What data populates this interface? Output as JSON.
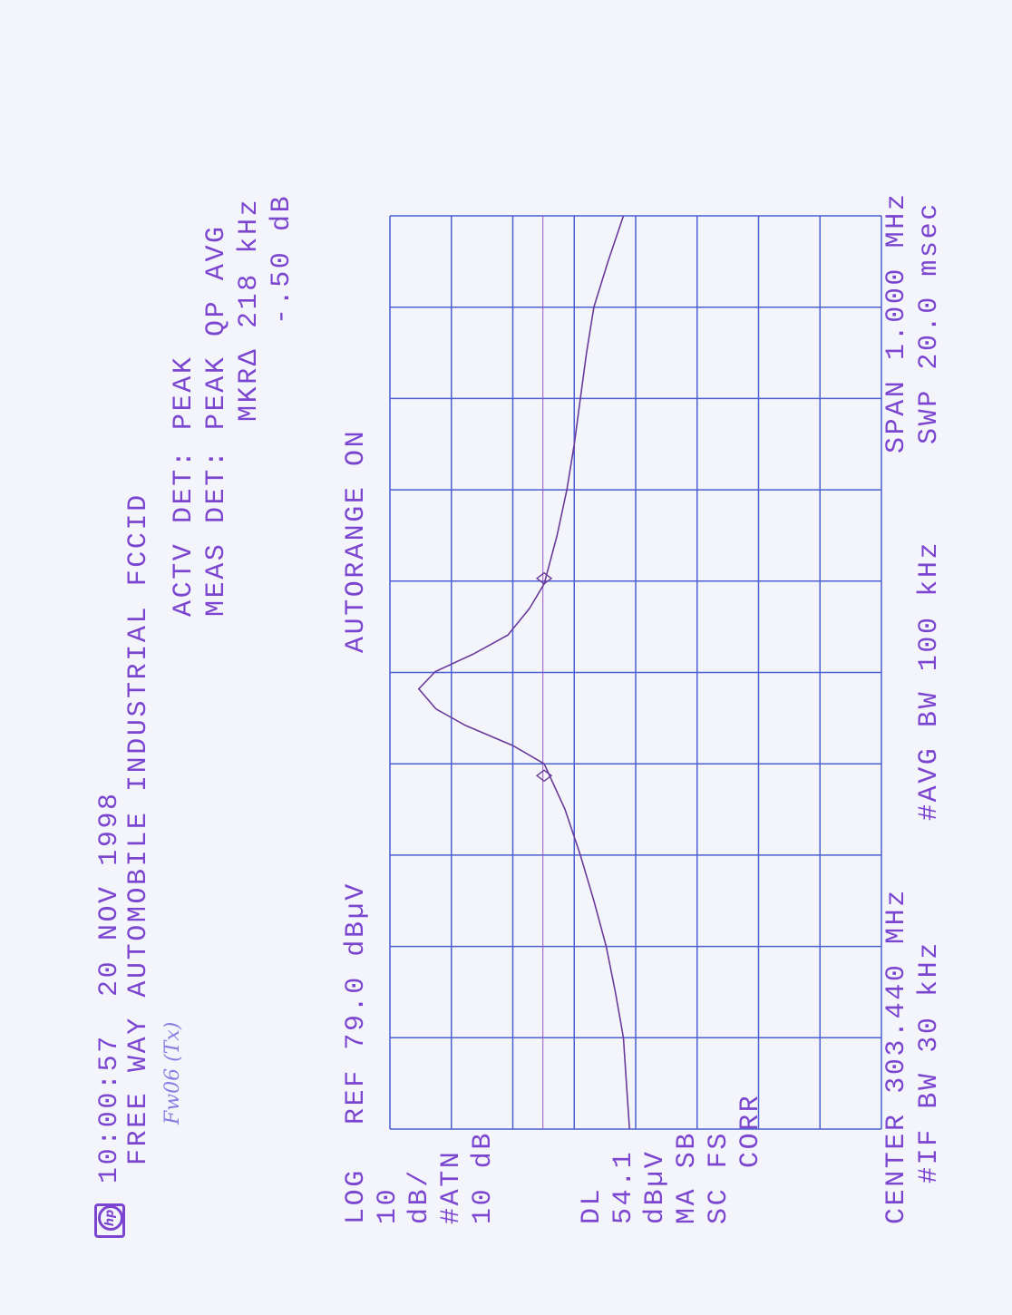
{
  "header": {
    "logo_text": "hp",
    "timestamp": "10:00:57  20 NOV 1998",
    "title": "FREE WAY AUTOMOBILE INDUSTRIAL FCCID",
    "handwritten_note": "Fw06 (Tx)"
  },
  "detector": {
    "actv": "ACTV DET: PEAK",
    "meas": "MEAS DET: PEAK QP AVG",
    "marker_delta": "MKRΔ 218 kHz",
    "marker_delta_level": "-.50 dB"
  },
  "autorange": "AUTORANGE ON",
  "ref_level": "REF 79.0 dBµV",
  "left_panel": [
    "LOG",
    "10",
    "dB/",
    "#ATN",
    "10 dB",
    "DL",
    "54.1",
    "dBµV",
    "MA SB",
    "SC FS",
    "CORR"
  ],
  "footer": {
    "center": "CENTER 303.440 MHz",
    "span": "SPAN 1.000 MHz",
    "if_bw": "#IF BW 30 kHz",
    "avg_bw": "#AVG BW 100 kHz",
    "sweep": "SWP 20.0 msec"
  },
  "colors": {
    "text": "#7b45cf",
    "grid": "#4b5fd0",
    "trace": "#6a3a9a"
  },
  "chart_data": {
    "type": "line",
    "xlabel": "",
    "ylabel": "",
    "x_unit": "MHz",
    "y_unit": "dBuV",
    "xlim": [
      302.94,
      303.94
    ],
    "ylim": [
      -1,
      79
    ],
    "y_scale": "log 10 dB/div",
    "grid": true,
    "x_divisions": 10,
    "y_divisions": 8,
    "display_line": 54.1,
    "series": [
      {
        "x": [
          302.94,
          302.99,
          303.04,
          303.09,
          303.14,
          303.19,
          303.24,
          303.29,
          303.34,
          303.36,
          303.382,
          303.4,
          303.422,
          303.441,
          303.46,
          303.481,
          303.51,
          303.537,
          303.59,
          303.64,
          303.69,
          303.74,
          303.79,
          303.84,
          303.89,
          303.94
        ],
        "y": [
          40.0,
          40.5,
          41.0,
          42.3,
          43.8,
          45.8,
          48.0,
          50.5,
          53.9,
          59.0,
          66.7,
          71.5,
          74.3,
          71.6,
          65.5,
          59.8,
          56.3,
          53.9,
          51.8,
          50.2,
          49.0,
          48.0,
          47.0,
          45.8,
          43.5,
          41.0
        ]
      }
    ],
    "markers": [
      {
        "x": 303.327,
        "y": 53.9
      },
      {
        "x": 303.543,
        "y": 53.9
      }
    ]
  }
}
